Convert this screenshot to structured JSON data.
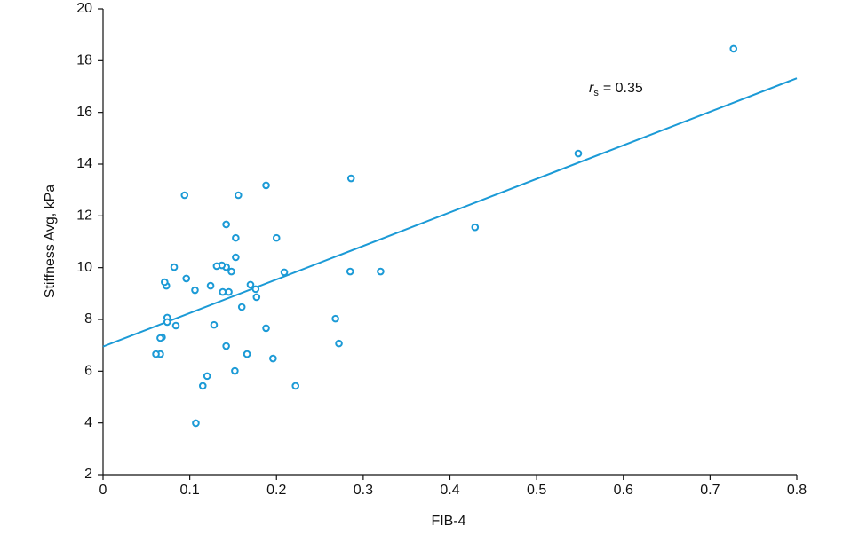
{
  "chart_data": {
    "type": "scatter",
    "x_label": "FIB-4",
    "y_label": "Stiffness Avg, kPa",
    "annotation": {
      "symbol": "r",
      "subscript": "s",
      "text": "= 0.35"
    },
    "color": "#1b9ad6",
    "xlim": [
      0,
      0.8
    ],
    "xticks": [
      0,
      0.1,
      0.2,
      0.3,
      0.4,
      0.5,
      0.6,
      0.7,
      0.8
    ],
    "ylim": [
      2,
      20
    ],
    "yticks": [
      2,
      4,
      6,
      8,
      10,
      12,
      14,
      16,
      18,
      20
    ],
    "x": [
      0.727,
      0.548,
      0.429,
      0.32,
      0.286,
      0.285,
      0.268,
      0.272,
      0.222,
      0.209,
      0.2,
      0.196,
      0.188,
      0.188,
      0.177,
      0.176,
      0.17,
      0.166,
      0.16,
      0.156,
      0.153,
      0.153,
      0.152,
      0.148,
      0.145,
      0.142,
      0.142,
      0.142,
      0.137,
      0.138,
      0.131,
      0.128,
      0.124,
      0.12,
      0.115,
      0.107,
      0.106,
      0.096,
      0.094,
      0.084,
      0.082,
      0.074,
      0.074,
      0.073,
      0.071,
      0.068,
      0.066,
      0.066,
      0.061
    ],
    "values": [
      18.46,
      14.41,
      11.56,
      9.85,
      13.45,
      9.85,
      8.03,
      7.07,
      5.43,
      9.82,
      11.15,
      6.49,
      13.18,
      7.66,
      8.86,
      9.17,
      9.34,
      6.66,
      8.48,
      12.8,
      10.4,
      11.15,
      6.01,
      9.85,
      9.06,
      11.67,
      10.02,
      6.97,
      10.09,
      9.06,
      10.06,
      7.79,
      9.3,
      5.81,
      5.43,
      3.99,
      9.13,
      9.58,
      12.8,
      7.76,
      10.02,
      8.07,
      7.9,
      9.3,
      9.44,
      7.31,
      7.28,
      6.66,
      6.66
    ],
    "trendline": {
      "x": [
        0,
        0.8
      ],
      "values": [
        6.95,
        17.32
      ]
    }
  }
}
